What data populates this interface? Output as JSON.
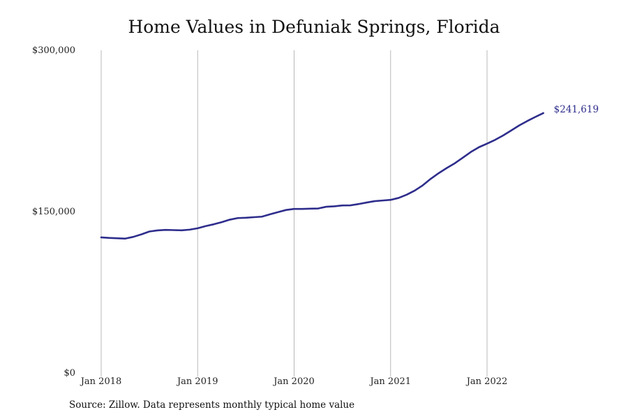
{
  "title": "Home Values in Defuniak Springs, Florida",
  "source": "Source: Zillow. Data represents monthly typical home value",
  "colors": {
    "line": "#2e2d8c",
    "grid": "#b8b8b8",
    "end_label": "#2e2d8c"
  },
  "chart_data": {
    "type": "line",
    "title": "Home Values in Defuniak Springs, Florida",
    "xlabel": "",
    "ylabel": "",
    "ylim": [
      0,
      300000
    ],
    "xlim": [
      "2018-01",
      "2022-08"
    ],
    "grid": "vertical lines at year starts",
    "y_ticks": [
      {
        "value": 0,
        "label": "$0"
      },
      {
        "value": 150000,
        "label": "$150,000"
      },
      {
        "value": 300000,
        "label": "$300,000"
      }
    ],
    "x_ticks": [
      {
        "date": "2018-01",
        "label": "Jan 2018"
      },
      {
        "date": "2019-01",
        "label": "Jan 2019"
      },
      {
        "date": "2020-01",
        "label": "Jan 2020"
      },
      {
        "date": "2021-01",
        "label": "Jan 2021"
      },
      {
        "date": "2022-01",
        "label": "Jan 2022"
      }
    ],
    "end_label": "$241,619",
    "series": [
      {
        "x": [
          "2018-01",
          "2018-02",
          "2018-03",
          "2018-04",
          "2018-05",
          "2018-06",
          "2018-07",
          "2018-08",
          "2018-09",
          "2018-10",
          "2018-11",
          "2018-12",
          "2019-01",
          "2019-02",
          "2019-03",
          "2019-04",
          "2019-05",
          "2019-06",
          "2019-07",
          "2019-08",
          "2019-09",
          "2019-10",
          "2019-11",
          "2019-12",
          "2020-01",
          "2020-02",
          "2020-03",
          "2020-04",
          "2020-05",
          "2020-06",
          "2020-07",
          "2020-08",
          "2020-09",
          "2020-10",
          "2020-11",
          "2020-12",
          "2021-01",
          "2021-02",
          "2021-03",
          "2021-04",
          "2021-05",
          "2021-06",
          "2021-07",
          "2021-08",
          "2021-09",
          "2021-10",
          "2021-11",
          "2021-12",
          "2022-01",
          "2022-02",
          "2022-03",
          "2022-04",
          "2022-05",
          "2022-06",
          "2022-07",
          "2022-08"
        ],
        "values": [
          126000,
          125500,
          125200,
          124900,
          126500,
          128800,
          131500,
          132500,
          133000,
          132800,
          132600,
          133200,
          134500,
          136500,
          138200,
          140200,
          142500,
          144000,
          144300,
          144800,
          145300,
          147500,
          149500,
          151500,
          152500,
          152500,
          152700,
          152900,
          154500,
          154900,
          155700,
          155800,
          157000,
          158400,
          159700,
          160300,
          160900,
          162700,
          165700,
          169500,
          174400,
          180500,
          185800,
          190600,
          195000,
          200200,
          205500,
          209900,
          213200,
          216700,
          220800,
          225400,
          230100,
          234200,
          238000,
          241619
        ]
      }
    ]
  }
}
